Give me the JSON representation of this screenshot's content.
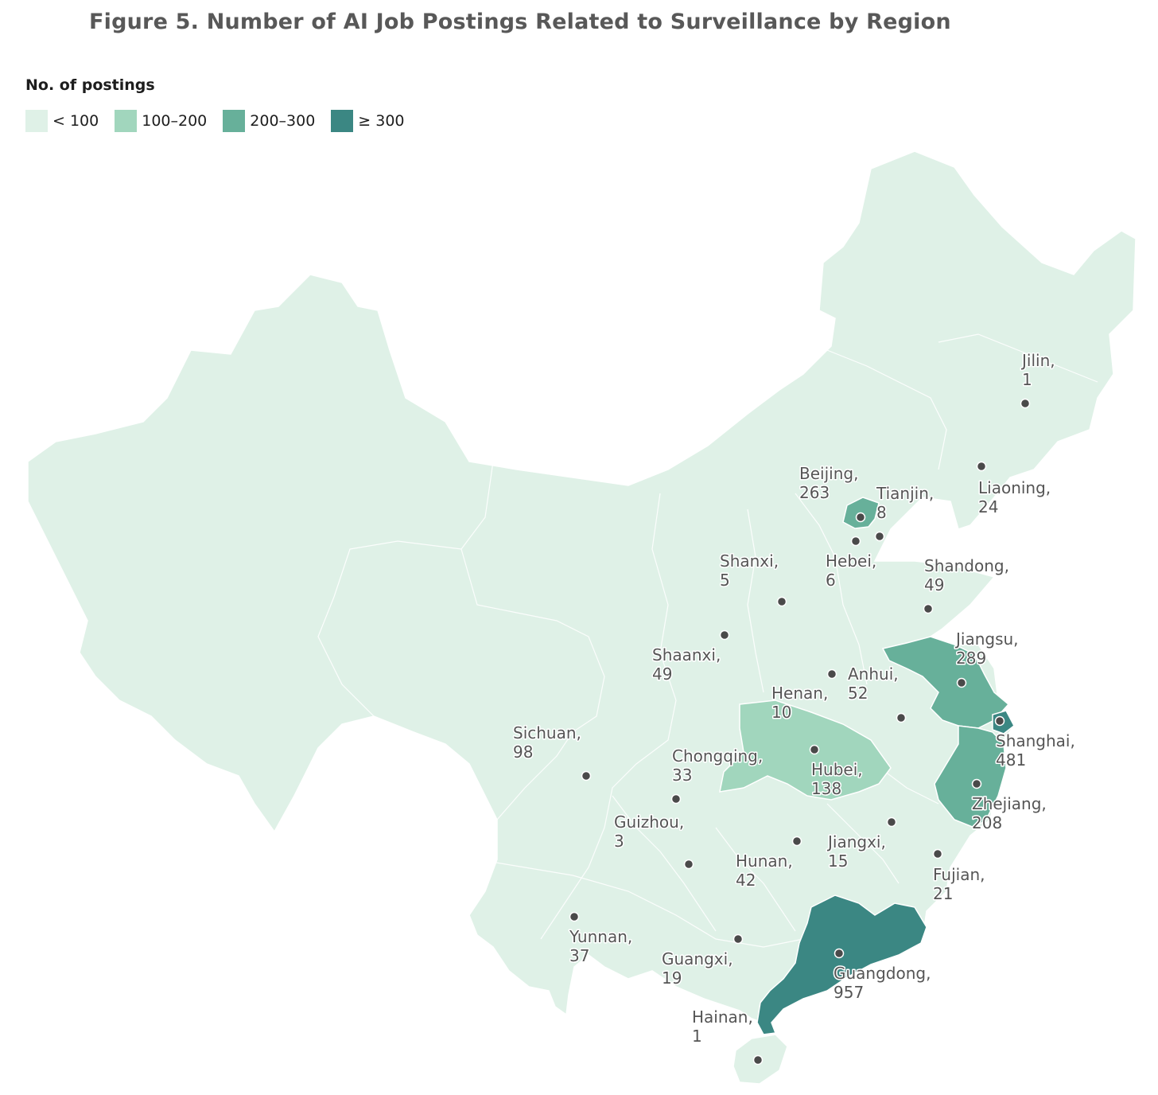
{
  "title": "Figure 5. Number of AI Job Postings Related to Surveillance by Region",
  "legend": {
    "title": "No. of postings",
    "bins": [
      {
        "label": "< 100",
        "color": "#dff1e7"
      },
      {
        "label": "100–200",
        "color": "#a1d6bd"
      },
      {
        "label": "200–300",
        "color": "#67b09a"
      },
      {
        "label": "≥ 300",
        "color": "#3b8783"
      }
    ]
  },
  "map_data": {
    "type": "choropleth",
    "region": "China",
    "regions": [
      {
        "name": "Jilin",
        "value": 1
      },
      {
        "name": "Liaoning",
        "value": 24
      },
      {
        "name": "Beijing",
        "value": 263
      },
      {
        "name": "Tianjin",
        "value": 8
      },
      {
        "name": "Hebei",
        "value": 6
      },
      {
        "name": "Shanxi",
        "value": 5
      },
      {
        "name": "Shandong",
        "value": 49
      },
      {
        "name": "Shaanxi",
        "value": 49
      },
      {
        "name": "Jiangsu",
        "value": 289
      },
      {
        "name": "Anhui",
        "value": 52
      },
      {
        "name": "Henan",
        "value": 10
      },
      {
        "name": "Shanghai",
        "value": 481
      },
      {
        "name": "Sichuan",
        "value": 98
      },
      {
        "name": "Chongqing",
        "value": 33
      },
      {
        "name": "Hubei",
        "value": 138
      },
      {
        "name": "Zhejiang",
        "value": 208
      },
      {
        "name": "Guizhou",
        "value": 3
      },
      {
        "name": "Jiangxi",
        "value": 15
      },
      {
        "name": "Hunan",
        "value": 42
      },
      {
        "name": "Fujian",
        "value": 21
      },
      {
        "name": "Yunnan",
        "value": 37
      },
      {
        "name": "Guangxi",
        "value": 19
      },
      {
        "name": "Guangdong",
        "value": 957
      },
      {
        "name": "Hainan",
        "value": 1
      }
    ]
  }
}
